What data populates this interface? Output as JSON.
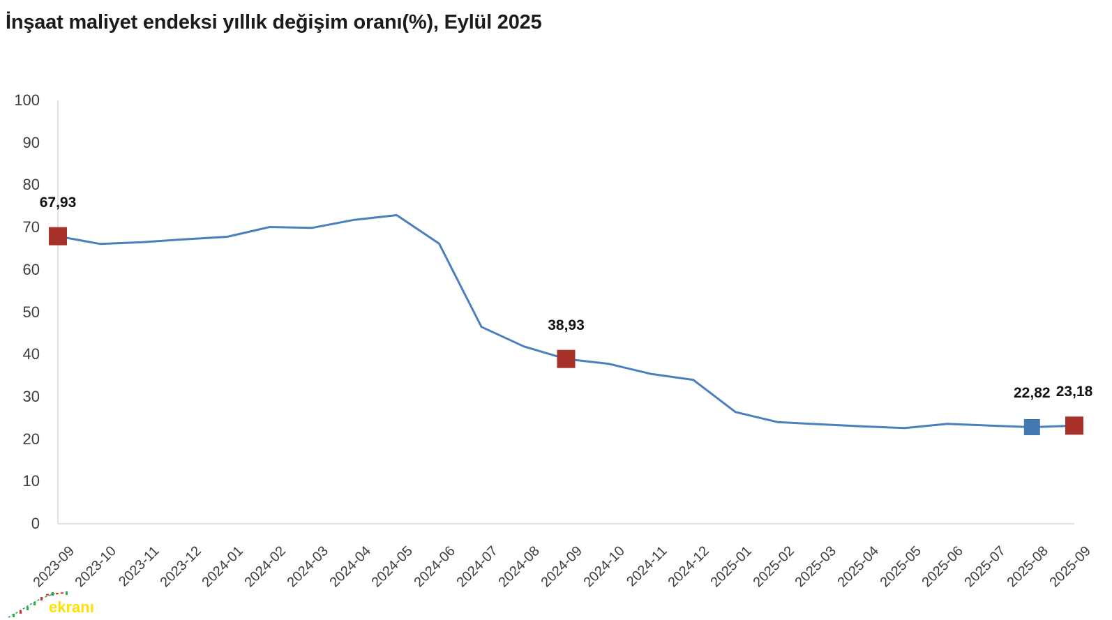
{
  "title": "İnşaat maliyet endeksi yıllık değişim oranı(%), Eylül 2025",
  "logo": {
    "text": "ekranı",
    "text_color": "#ffe000"
  },
  "colors": {
    "line": "#4a7ebc",
    "marker_red": "#a8322a",
    "marker_blue": "#4478b2",
    "axis": "#d9d9d9",
    "tick_label": "#3d3d3d",
    "title": "#1b1b1b"
  },
  "chart_data": {
    "type": "line",
    "title": "İnşaat maliyet endeksi yıllık değişim oranı(%), Eylül 2025",
    "xlabel": "",
    "ylabel": "",
    "ylim": [
      0,
      100
    ],
    "ytick_step": 10,
    "grid": "off",
    "legend": "none",
    "x": [
      "2023-09",
      "2023-10",
      "2023-11",
      "2023-12",
      "2024-01",
      "2024-02",
      "2024-03",
      "2024-04",
      "2024-05",
      "2024-06",
      "2024-07",
      "2024-08",
      "2024-09",
      "2024-10",
      "2024-11",
      "2024-12",
      "2025-01",
      "2025-02",
      "2025-03",
      "2025-04",
      "2025-05",
      "2025-06",
      "2025-07",
      "2025-08",
      "2025-09"
    ],
    "series": [
      {
        "name": "İnşaat maliyet endeksi yıllık değişim oranı (%)",
        "values": [
          67.93,
          66.1,
          66.5,
          67.2,
          67.8,
          70.1,
          69.9,
          71.8,
          72.9,
          66.2,
          46.5,
          41.9,
          38.93,
          37.8,
          35.4,
          34.0,
          26.4,
          24.0,
          23.5,
          23.0,
          22.6,
          23.6,
          23.2,
          22.82,
          23.18
        ]
      }
    ],
    "annotations": [
      {
        "x": "2023-09",
        "index": 0,
        "value": 67.93,
        "label": "67,93",
        "marker": "square",
        "marker_color": "#a8322a",
        "marker_size": 26
      },
      {
        "x": "2024-09",
        "index": 12,
        "value": 38.93,
        "label": "38,93",
        "marker": "square",
        "marker_color": "#a8322a",
        "marker_size": 26
      },
      {
        "x": "2025-08",
        "index": 23,
        "value": 22.82,
        "label": "22,82",
        "marker": "square",
        "marker_color": "#4478b2",
        "marker_size": 23
      },
      {
        "x": "2025-09",
        "index": 24,
        "value": 23.18,
        "label": "23,18",
        "marker": "square",
        "marker_color": "#a8322a",
        "marker_size": 26
      }
    ]
  }
}
